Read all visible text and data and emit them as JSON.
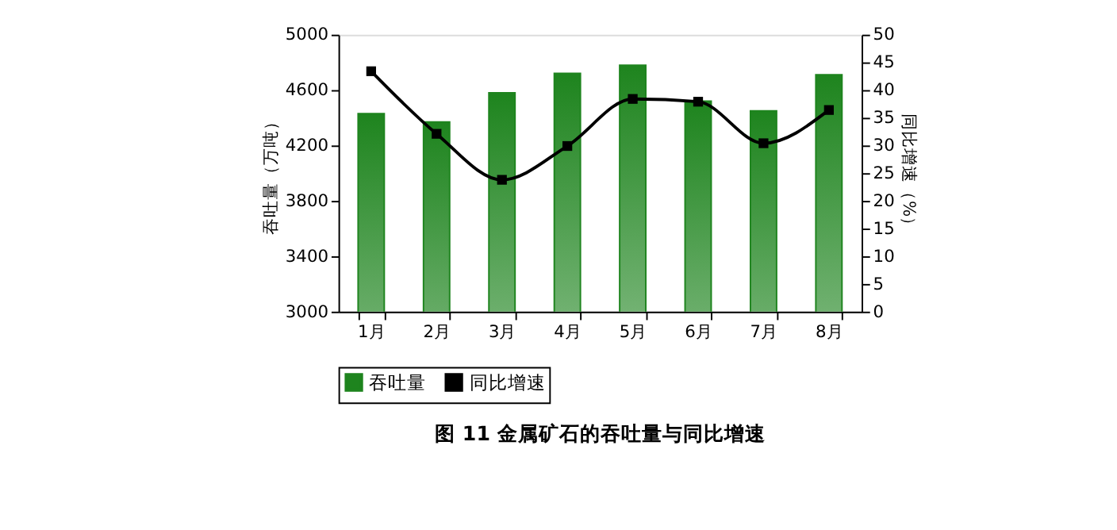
{
  "chart_data": {
    "type": "bar",
    "title": "图 11 金属矿石的吞吐量与同比增速",
    "categories": [
      "1月",
      "2月",
      "3月",
      "4月",
      "5月",
      "6月",
      "7月",
      "8月"
    ],
    "series": [
      {
        "name": "吞吐量",
        "color": "#1e841e",
        "values": [
          4430,
          4370,
          4580,
          4720,
          4780,
          4520,
          4450,
          4710
        ]
      },
      {
        "name": "同比增速",
        "type": "line",
        "axis": "y2",
        "color": "#000000",
        "marker": "square",
        "values": [
          43.4,
          32.1,
          23.8,
          29.9,
          38.4,
          37.9,
          30.4,
          36.4
        ]
      }
    ],
    "ylabel": "吞吐量（万吨）",
    "y2label": "同比增速（%）",
    "ylim": [
      3000,
      5000
    ],
    "yticks": [
      3000,
      3400,
      3800,
      4200,
      4600,
      5000
    ],
    "y2lim": [
      0,
      50
    ],
    "y2ticks": [
      0,
      5,
      10,
      15,
      20,
      25,
      30,
      35,
      40,
      45,
      50
    ],
    "legend": "bottom",
    "grid": false
  }
}
